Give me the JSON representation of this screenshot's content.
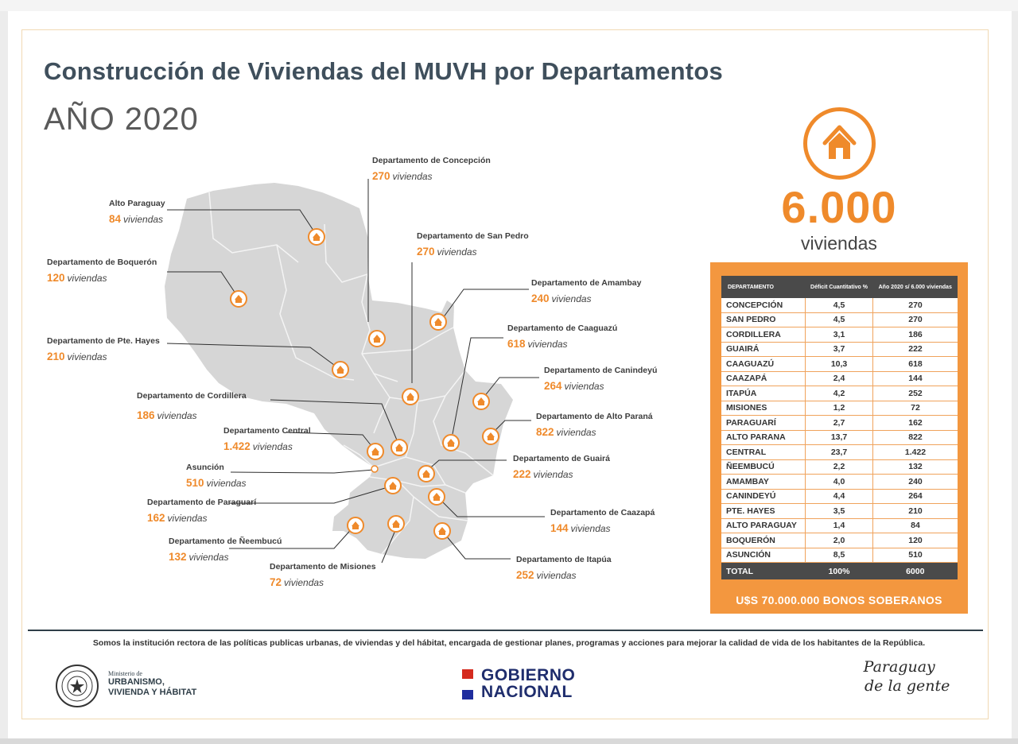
{
  "header": {
    "title": "Construcción de Viviendas del MUVH por Departamentos",
    "subtitle": "AÑO 2020"
  },
  "colors": {
    "accent": "#ef8a2b",
    "dark": "#4a4a4a",
    "navy": "#2f3e48",
    "map": "#d6d6d6"
  },
  "map": {
    "unit": "viviendas",
    "labels": [
      {
        "name": "Departamento de Concepción",
        "value": "270"
      },
      {
        "name": "Alto Paraguay",
        "value": "84"
      },
      {
        "name": "Departamento de San Pedro",
        "value": "270"
      },
      {
        "name": "Departamento de Boquerón",
        "value": "120"
      },
      {
        "name": "Departamento de Amambay",
        "value": "240"
      },
      {
        "name": "Departamento de Caaguazú",
        "value": "618"
      },
      {
        "name": "Departamento de Pte. Hayes",
        "value": "210"
      },
      {
        "name": "Departamento de Canindeyú",
        "value": "264"
      },
      {
        "name": "Departamento de Cordillera",
        "value": "186"
      },
      {
        "name": "Departamento de Alto Paraná",
        "value": "822"
      },
      {
        "name": "Departamento Central",
        "value": "1.422"
      },
      {
        "name": "Departamento de Guairá",
        "value": "222"
      },
      {
        "name": "Asunción",
        "value": "510"
      },
      {
        "name": "Departamento de Paraguarí",
        "value": "162"
      },
      {
        "name": "Departamento de Caazapá",
        "value": "144"
      },
      {
        "name": "Departamento de Ñeembucú",
        "value": "132"
      },
      {
        "name": "Departamento de Itapúa",
        "value": "252"
      },
      {
        "name": "Departamento de Misiones",
        "value": "72"
      }
    ]
  },
  "summary": {
    "icon": "house-icon",
    "total": "6.000",
    "unit": "viviendas"
  },
  "table": {
    "headers": [
      "DEPARTAMENTO",
      "Déficit Cuantitativo %",
      "Año 2020 s/ 6.000 viviendas"
    ],
    "rows": [
      [
        "CONCEPCIÓN",
        "4,5",
        "270"
      ],
      [
        "SAN PEDRO",
        "4,5",
        "270"
      ],
      [
        "CORDILLERA",
        "3,1",
        "186"
      ],
      [
        "GUAIRÁ",
        "3,7",
        "222"
      ],
      [
        "CAAGUAZÚ",
        "10,3",
        "618"
      ],
      [
        "CAAZAPÁ",
        "2,4",
        "144"
      ],
      [
        "ITAPÚA",
        "4,2",
        "252"
      ],
      [
        "MISIONES",
        "1,2",
        "72"
      ],
      [
        "PARAGUARÍ",
        "2,7",
        "162"
      ],
      [
        "ALTO PARANA",
        "13,7",
        "822"
      ],
      [
        "CENTRAL",
        "23,7",
        "1.422"
      ],
      [
        "ÑEEMBUCÚ",
        "2,2",
        "132"
      ],
      [
        "AMAMBAY",
        "4,0",
        "240"
      ],
      [
        "CANINDEYÚ",
        "4,4",
        "264"
      ],
      [
        "PTE. HAYES",
        "3,5",
        "210"
      ],
      [
        "ALTO PARAGUAY",
        "1,4",
        "84"
      ],
      [
        "BOQUERÓN",
        "2,0",
        "120"
      ],
      [
        "ASUNCIÓN",
        "8,5",
        "510"
      ]
    ],
    "total": [
      "TOTAL",
      "100%",
      "6000"
    ],
    "footer": "U$S 70.000.000 BONOS SOBERANOS"
  },
  "footer": {
    "mission": "Somos la institución rectora de las políticas publicas urbanas, de viviendas y del hábitat, encargada de gestionar planes, programas y acciones para mejorar la calidad de vida de los habitantes de la República.",
    "ministry": {
      "line1": "Ministerio de",
      "line2": "URBANISMO,",
      "line3": "VIVIENDA Y HÁBITAT"
    },
    "gobierno": {
      "line1": "GOBIERNO",
      "line2": "NACIONAL"
    },
    "slogan": {
      "line1": "Paraguay",
      "line2": "de la gente"
    }
  }
}
